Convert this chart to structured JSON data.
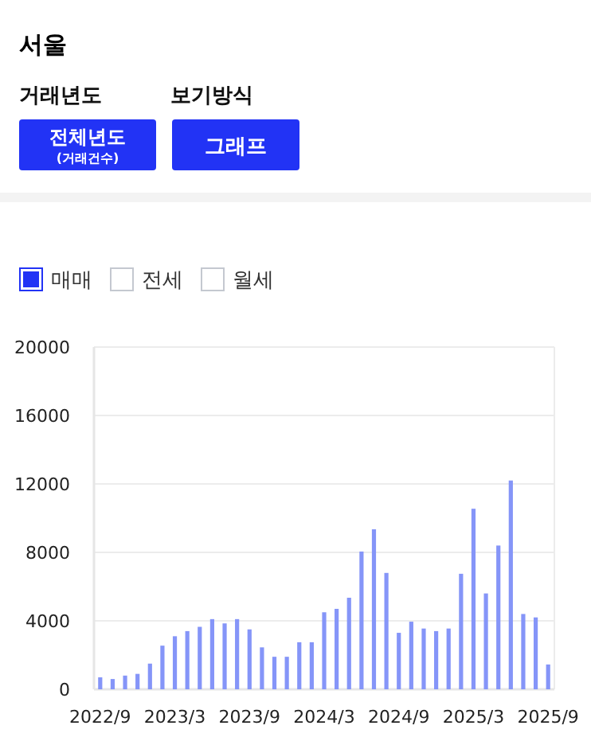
{
  "chart_data": {
    "type": "bar",
    "title": "서울",
    "annotations": [
      "거래년도",
      "보기방식",
      "전체년도",
      "(거래건수)",
      "그래프"
    ],
    "categories": [
      "2022/9",
      null,
      null,
      null,
      null,
      null,
      "2023/3",
      null,
      null,
      null,
      null,
      null,
      "2023/9",
      null,
      null,
      null,
      null,
      null,
      "2024/3",
      null,
      null,
      null,
      null,
      null,
      "2024/9",
      null,
      null,
      null,
      null,
      null,
      "2025/3",
      null,
      null,
      null,
      null,
      null,
      "2025/9"
    ],
    "series": [
      {
        "name": "매매",
        "color": "#8595f8",
        "values": [
          700,
          600,
          800,
          900,
          1500,
          2550,
          3100,
          3400,
          3650,
          4100,
          3850,
          4100,
          3500,
          2450,
          1900,
          1900,
          2750,
          2750,
          4500,
          4700,
          5350,
          8050,
          9350,
          6800,
          3300,
          3950,
          3550,
          3400,
          3550,
          6750,
          10550,
          5600,
          8400,
          12200,
          4400,
          4200,
          1450
        ]
      },
      {
        "name": "전세",
        "values": [
          null,
          null,
          null,
          null,
          null,
          null,
          null,
          null,
          null,
          null,
          null,
          null,
          null,
          null,
          null,
          null,
          null,
          null,
          null,
          null,
          null,
          null,
          null,
          null,
          null,
          null,
          null,
          null,
          null,
          null,
          null,
          null,
          null,
          null,
          null,
          null,
          null
        ]
      },
      {
        "name": "월세",
        "values": [
          null,
          null,
          null,
          null,
          null,
          null,
          null,
          null,
          null,
          null,
          null,
          null,
          null,
          null,
          null,
          null,
          null,
          null,
          null,
          null,
          null,
          null,
          null,
          null,
          null,
          null,
          null,
          null,
          null,
          null,
          null,
          null,
          null,
          null,
          null,
          null,
          null
        ]
      }
    ],
    "ylim": [
      0,
      20000
    ],
    "yticks": [
      0,
      4000,
      8000,
      12000,
      16000,
      20000
    ],
    "grid": "y",
    "legend": "top left"
  }
}
